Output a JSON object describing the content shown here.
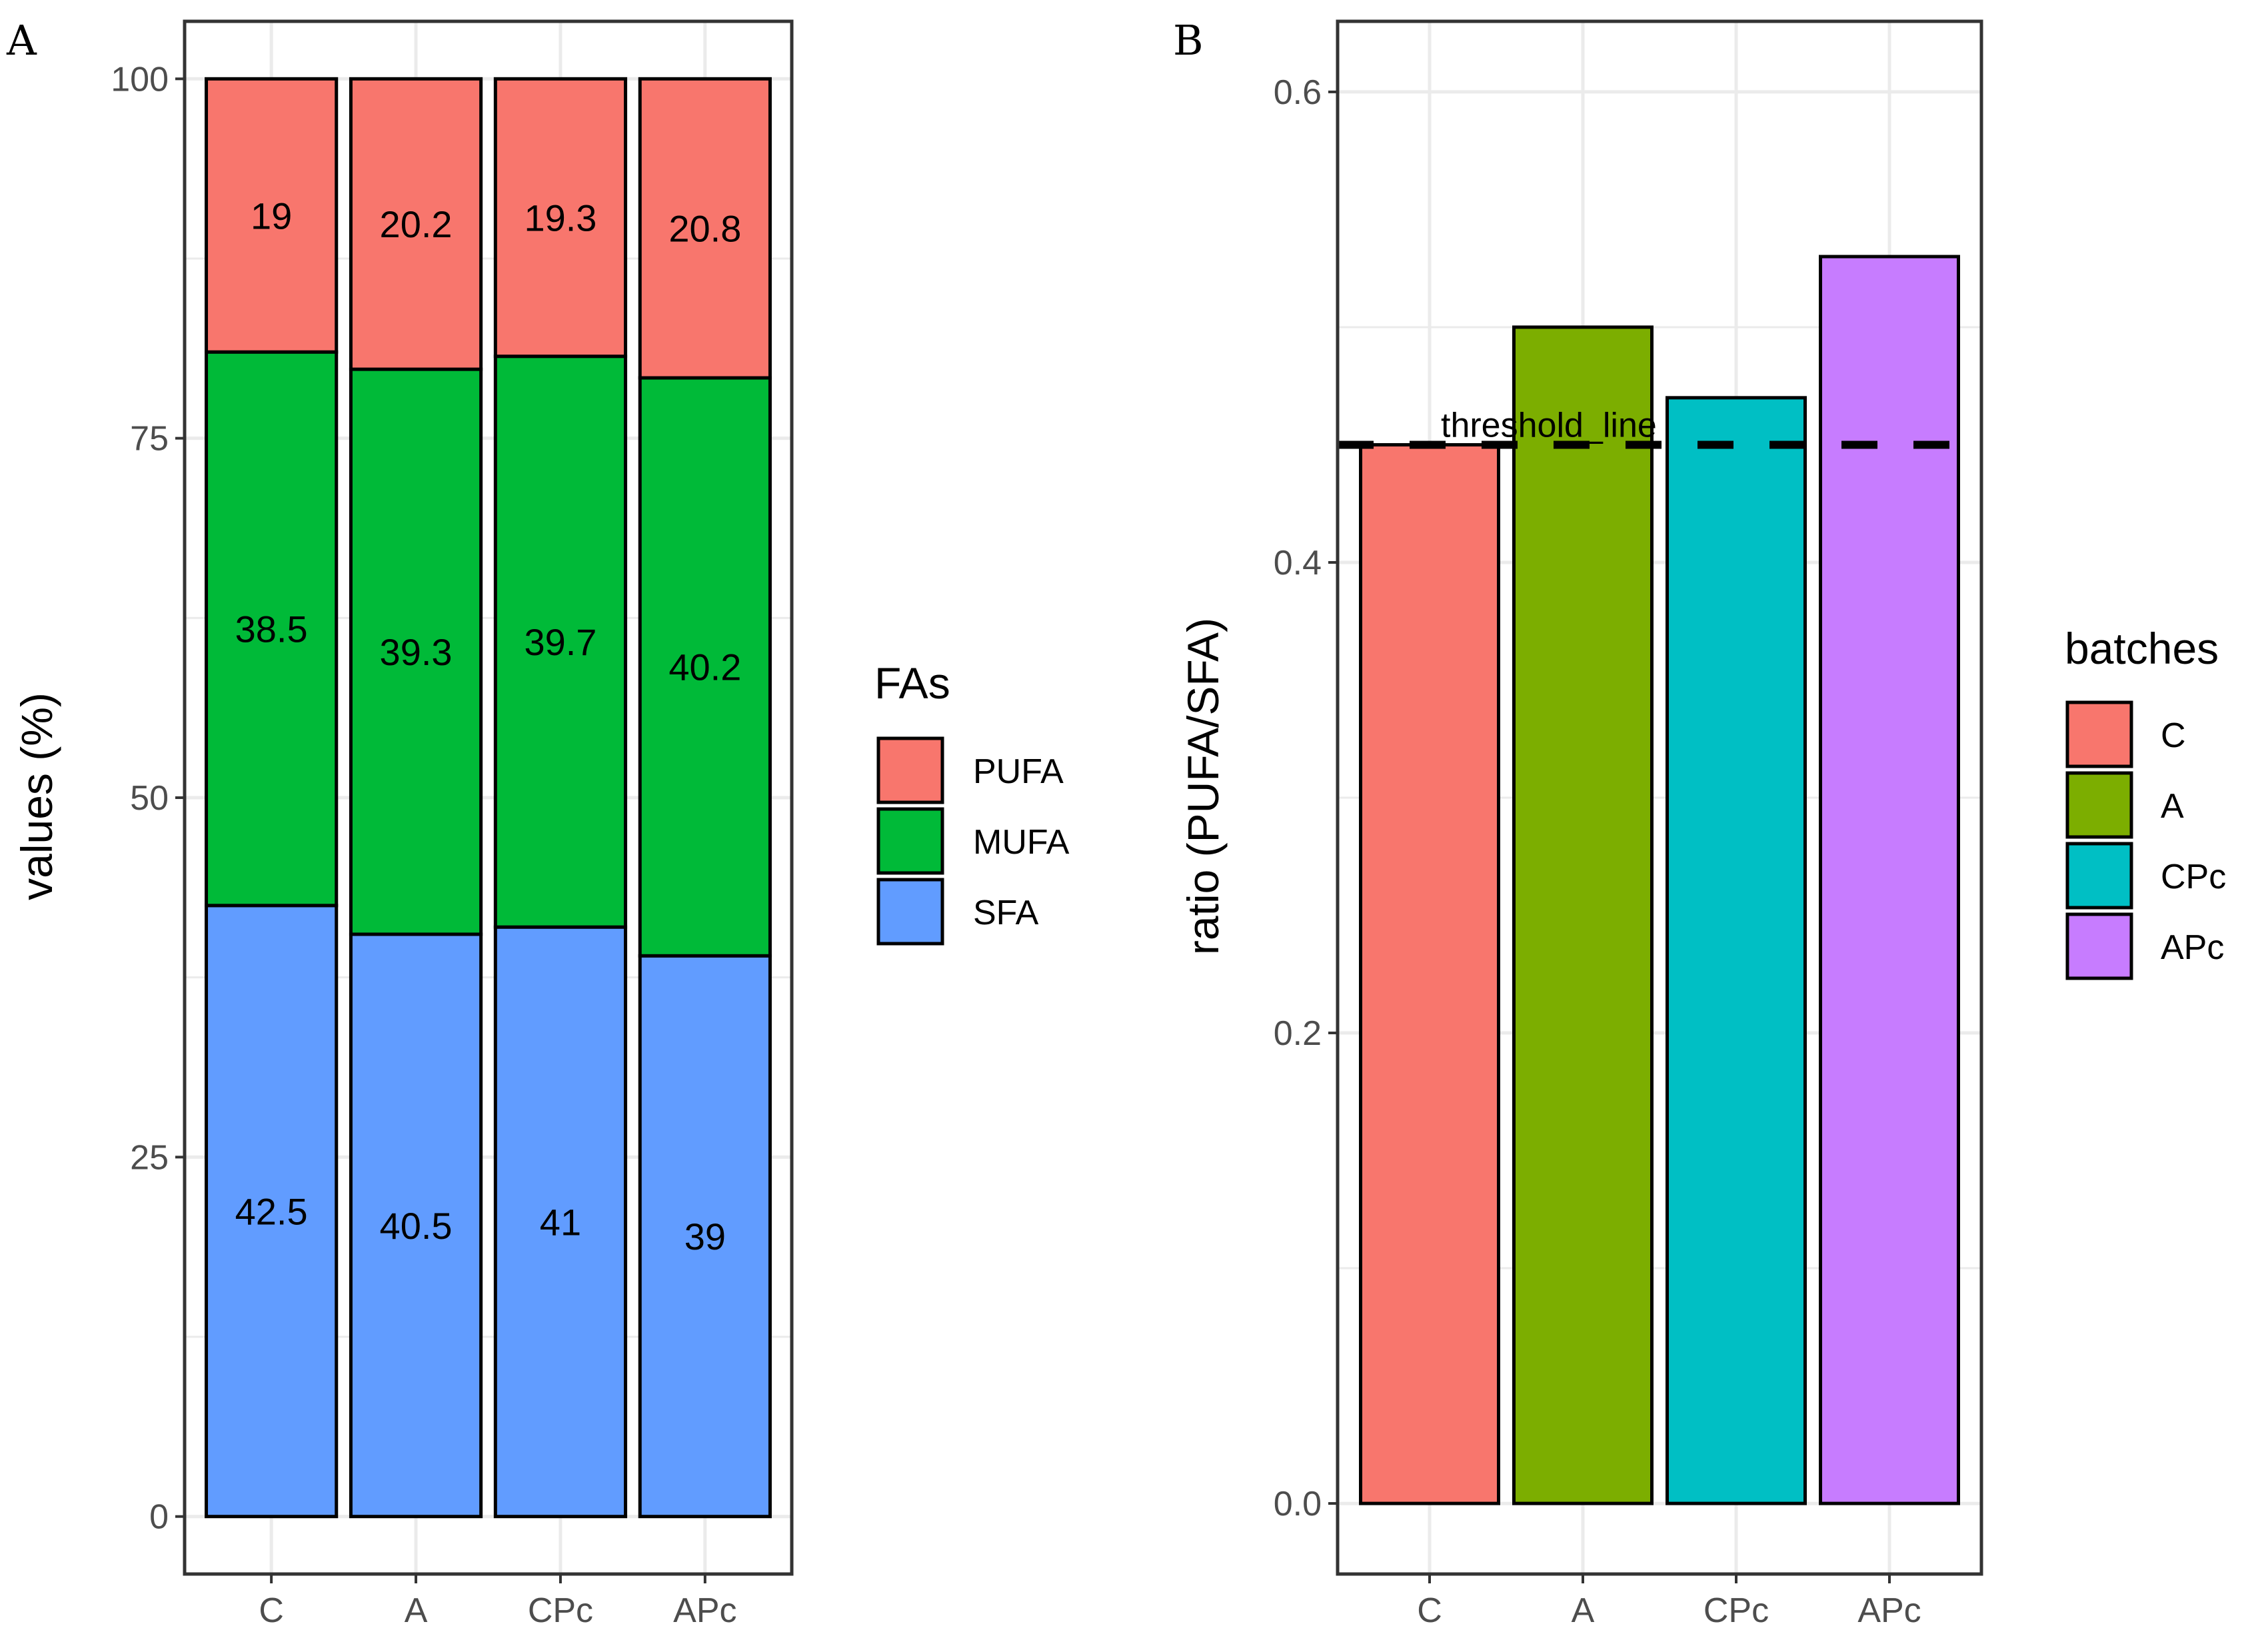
{
  "chart_data": [
    {
      "panel": "A",
      "type": "bar",
      "stacked": true,
      "categories": [
        "C",
        "A",
        "CPc",
        "APc"
      ],
      "series": [
        {
          "name": "SFA",
          "color": "#619CFF",
          "values": [
            42.5,
            40.5,
            41,
            39
          ],
          "labels": [
            "42.5",
            "40.5",
            "41",
            "39"
          ]
        },
        {
          "name": "MUFA",
          "color": "#00BA38",
          "values": [
            38.5,
            39.3,
            39.7,
            40.2
          ],
          "labels": [
            "38.5",
            "39.3",
            "39.7",
            "40.2"
          ]
        },
        {
          "name": "PUFA",
          "color": "#F8766D",
          "values": [
            19,
            20.2,
            19.3,
            20.8
          ],
          "labels": [
            "19",
            "20.2",
            "19.3",
            "20.8"
          ]
        }
      ],
      "title": "",
      "xlabel": "",
      "ylabel": "values (%)",
      "ylim": [
        -4,
        104
      ],
      "yticks": [
        0,
        25,
        50,
        75,
        100
      ],
      "ytick_labels": [
        "0",
        "25",
        "50",
        "75",
        "100"
      ],
      "grid": true,
      "legend": {
        "title": "FAs",
        "position": "right",
        "entries": [
          "PUFA",
          "MUFA",
          "SFA"
        ]
      }
    },
    {
      "panel": "B",
      "type": "bar",
      "categories": [
        "C",
        "A",
        "CPc",
        "APc"
      ],
      "values": [
        0.45,
        0.5,
        0.47,
        0.53
      ],
      "colors": [
        "#F8766D",
        "#7CAE00",
        "#00BFC4",
        "#C77CFF"
      ],
      "title": "",
      "xlabel": "",
      "ylabel": "ratio (PUFA/SFA)",
      "ylim": [
        -0.03,
        0.63
      ],
      "yticks": [
        0.0,
        0.2,
        0.4,
        0.6
      ],
      "ytick_labels": [
        "0.0",
        "0.2",
        "0.4",
        "0.6"
      ],
      "grid": true,
      "threshold": {
        "value": 0.45,
        "label": "threshold_line"
      },
      "legend": {
        "title": "batches",
        "position": "right",
        "entries": [
          "C",
          "A",
          "CPc",
          "APc"
        ]
      }
    }
  ]
}
